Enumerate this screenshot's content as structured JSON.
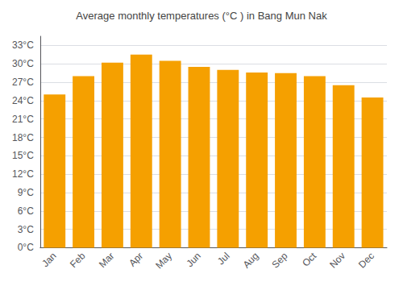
{
  "chart_data": {
    "type": "bar",
    "title": "Average monthly temperatures (°C ) in Bang Mun Nak",
    "categories": [
      "Jan",
      "Feb",
      "Mar",
      "Apr",
      "May",
      "Jun",
      "Jul",
      "Aug",
      "Sep",
      "Oct",
      "Nov",
      "Dec"
    ],
    "values": [
      25.0,
      28.0,
      30.2,
      31.5,
      30.5,
      29.5,
      29.0,
      28.6,
      28.5,
      28.0,
      26.5,
      24.5
    ],
    "color": "#F5A000",
    "ylim": [
      0,
      34.5
    ],
    "yticks": [
      {
        "value": 0,
        "label": "0°C"
      },
      {
        "value": 3,
        "label": "3°C"
      },
      {
        "value": 6,
        "label": "6°C"
      },
      {
        "value": 9,
        "label": "9°C"
      },
      {
        "value": 12,
        "label": "12°C"
      },
      {
        "value": 15,
        "label": "15°C"
      },
      {
        "value": 18,
        "label": "18°C"
      },
      {
        "value": 21,
        "label": "21°C"
      },
      {
        "value": 24,
        "label": "24°C"
      },
      {
        "value": 27,
        "label": "27°C"
      },
      {
        "value": 30,
        "label": "30°C"
      },
      {
        "value": 33,
        "label": "33°C"
      }
    ],
    "grid": true
  }
}
